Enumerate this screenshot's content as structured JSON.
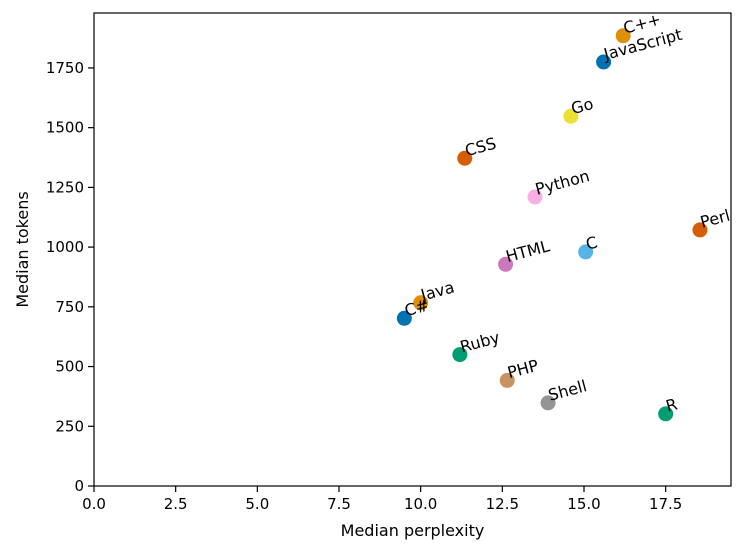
{
  "chart_data": {
    "type": "scatter",
    "title": "",
    "xlabel": "Median perplexity",
    "ylabel": "Median tokens",
    "xlim": [
      0,
      19.5
    ],
    "ylim": [
      0,
      1980
    ],
    "xticks": [
      0.0,
      2.5,
      5.0,
      7.5,
      10.0,
      12.5,
      15.0,
      17.5
    ],
    "xtick_labels": [
      "0.0",
      "2.5",
      "5.0",
      "7.5",
      "10.0",
      "12.5",
      "15.0",
      "17.5"
    ],
    "yticks": [
      0,
      250,
      500,
      750,
      1000,
      1250,
      1500,
      1750
    ],
    "ytick_labels": [
      "0",
      "250",
      "500",
      "750",
      "1000",
      "1250",
      "1500",
      "1750"
    ],
    "grid": false,
    "label_rotation_deg": 15,
    "points": [
      {
        "label": "C++",
        "x": 16.2,
        "y": 1885,
        "color": "#DE8F05"
      },
      {
        "label": "JavaScript",
        "x": 15.6,
        "y": 1775,
        "color": "#0173B2"
      },
      {
        "label": "Go",
        "x": 14.6,
        "y": 1548,
        "color": "#ECE133"
      },
      {
        "label": "CSS",
        "x": 11.35,
        "y": 1372,
        "color": "#D55E00"
      },
      {
        "label": "Python",
        "x": 13.5,
        "y": 1210,
        "color": "#FBAFE4"
      },
      {
        "label": "Perl",
        "x": 18.55,
        "y": 1072,
        "color": "#D55E00"
      },
      {
        "label": "C",
        "x": 15.05,
        "y": 980,
        "color": "#56B4E9"
      },
      {
        "label": "HTML",
        "x": 12.6,
        "y": 928,
        "color": "#CC78BC"
      },
      {
        "label": "Java",
        "x": 10.0,
        "y": 767,
        "color": "#DE8F05"
      },
      {
        "label": "C#",
        "x": 9.5,
        "y": 702,
        "color": "#0173B2"
      },
      {
        "label": "Ruby",
        "x": 11.2,
        "y": 550,
        "color": "#029E73"
      },
      {
        "label": "PHP",
        "x": 12.65,
        "y": 442,
        "color": "#CA9161"
      },
      {
        "label": "Shell",
        "x": 13.9,
        "y": 348,
        "color": "#949494"
      },
      {
        "label": "R",
        "x": 17.5,
        "y": 302,
        "color": "#029E73"
      }
    ]
  }
}
